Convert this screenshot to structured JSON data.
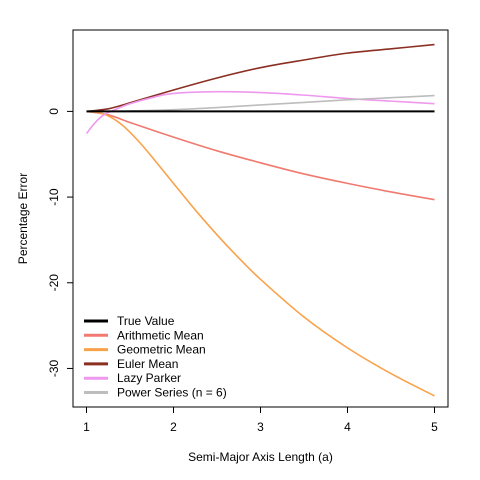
{
  "chart_data": {
    "type": "line",
    "xlabel": "Semi-Major Axis Length (a)",
    "ylabel": "Percentage Error",
    "xlim": [
      1,
      5
    ],
    "ylim": [
      -34.5,
      9.5
    ],
    "xticks": [
      1,
      2,
      3,
      4,
      5
    ],
    "yticks": [
      0,
      -10,
      -20,
      -30
    ],
    "xtick_labels": [
      "1",
      "2",
      "3",
      "4",
      "5"
    ],
    "ytick_labels": [
      "0",
      "-10",
      "-20",
      "-30"
    ],
    "grid": false,
    "legend_position": "bottom-left",
    "series": [
      {
        "name": "True Value",
        "color": "#000000",
        "x": [
          1,
          1.5,
          2,
          2.5,
          3,
          3.5,
          4,
          4.5,
          5
        ],
        "values": [
          0,
          0,
          0,
          0,
          0,
          0,
          0,
          0,
          0
        ]
      },
      {
        "name": "Arithmetic Mean",
        "color": "#f07a70",
        "x": [
          1,
          1.25,
          1.5,
          2,
          2.5,
          3,
          3.5,
          4,
          4.5,
          5
        ],
        "values": [
          0,
          -0.4,
          -1.3,
          -3.0,
          -4.6,
          -6.0,
          -7.3,
          -8.4,
          -9.4,
          -10.3
        ]
      },
      {
        "name": "Geometric Mean",
        "color": "#f9a24a",
        "x": [
          1,
          1.2,
          1.4,
          1.6,
          1.8,
          2,
          2.25,
          2.5,
          2.75,
          3,
          3.5,
          4,
          4.5,
          5
        ],
        "values": [
          0,
          -0.3,
          -1.5,
          -3.5,
          -5.9,
          -8.4,
          -11.5,
          -14.4,
          -17.1,
          -19.6,
          -24.0,
          -27.6,
          -30.6,
          -33.2
        ]
      },
      {
        "name": "Euler Mean",
        "color": "#8b2f22",
        "x": [
          1,
          1.25,
          1.5,
          2,
          2.5,
          3,
          3.5,
          4,
          4.5,
          5
        ],
        "values": [
          0,
          0.3,
          1.0,
          2.5,
          3.9,
          5.1,
          6.0,
          6.8,
          7.3,
          7.8
        ]
      },
      {
        "name": "Lazy Parker",
        "color": "#ee99ee",
        "x": [
          1,
          1.1,
          1.2,
          1.35,
          1.5,
          1.75,
          2,
          2.5,
          3,
          3.5,
          4,
          4.5,
          5
        ],
        "values": [
          -2.6,
          -1.3,
          -0.4,
          0.3,
          0.9,
          1.6,
          2.1,
          2.3,
          2.2,
          1.9,
          1.5,
          1.2,
          0.9
        ]
      },
      {
        "name": "Power Series (n = 6)",
        "color": "#bdbdbd",
        "x": [
          1,
          1.5,
          2,
          2.5,
          3,
          3.5,
          4,
          4.5,
          5
        ],
        "values": [
          0,
          0.05,
          0.2,
          0.45,
          0.75,
          1.05,
          1.35,
          1.6,
          1.85
        ]
      }
    ]
  }
}
